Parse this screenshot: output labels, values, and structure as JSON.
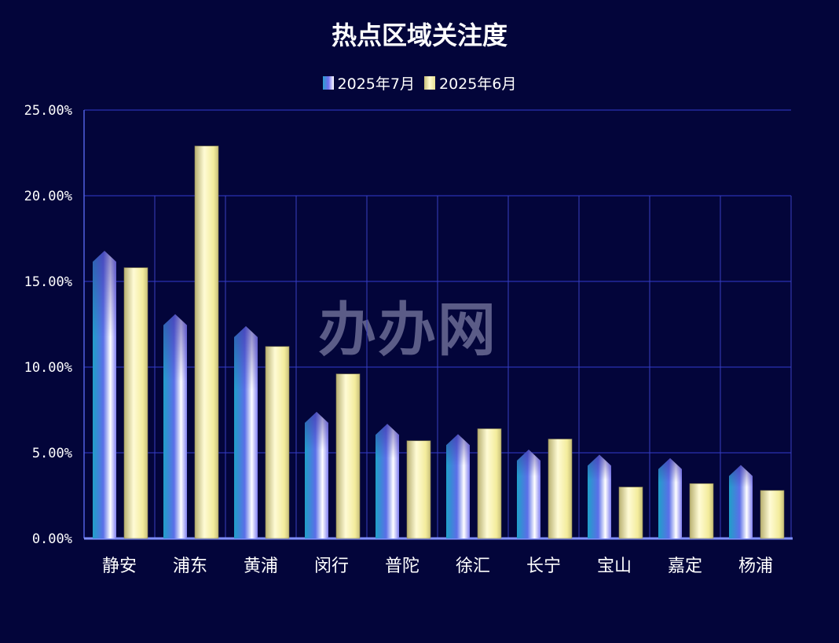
{
  "chart_data": {
    "type": "bar",
    "title": "热点区域关注度",
    "categories": [
      "静安",
      "浦东",
      "黄浦",
      "闵行",
      "普陀",
      "徐汇",
      "长宁",
      "宝山",
      "嘉定",
      "杨浦"
    ],
    "series": [
      {
        "name": "2025年7月",
        "values": [
          16.6,
          12.9,
          12.2,
          7.2,
          6.5,
          5.9,
          5.0,
          4.7,
          4.5,
          4.1
        ],
        "color": "#6f6ff0"
      },
      {
        "name": "2025年6月",
        "values": [
          15.8,
          22.9,
          11.2,
          9.6,
          5.7,
          6.4,
          5.8,
          3.0,
          3.2,
          2.8
        ],
        "color": "#f5f0a8"
      }
    ],
    "ylim": [
      0,
      25
    ],
    "yticks": [
      "0.00%",
      "5.00%",
      "10.00%",
      "15.00%",
      "20.00%",
      "25.00%"
    ],
    "grid": true,
    "legend_position": "top-center",
    "watermark": "办办网"
  }
}
